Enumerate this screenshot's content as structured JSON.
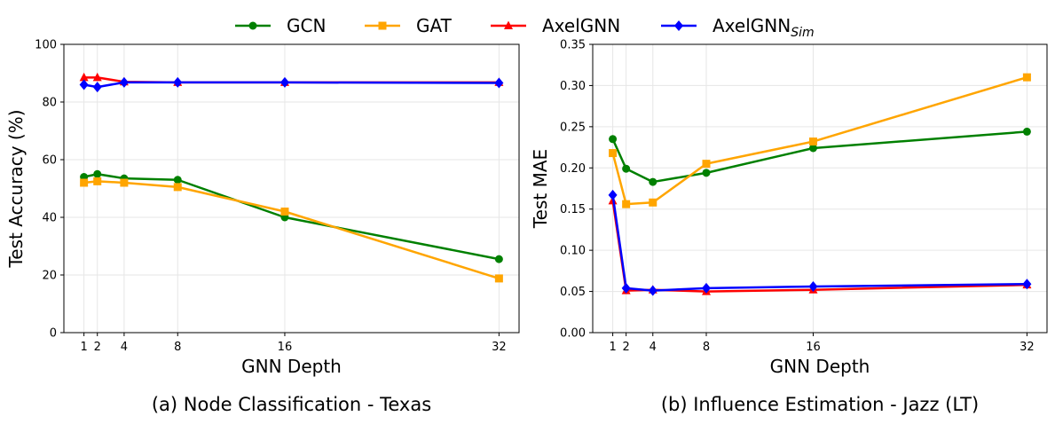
{
  "legend": [
    {
      "name": "GCN",
      "sub": "",
      "color": "#008000",
      "marker": "circle"
    },
    {
      "name": "GAT",
      "sub": "",
      "color": "#FFA500",
      "marker": "square"
    },
    {
      "name": "AxelGNN",
      "sub": "",
      "color": "#FF0000",
      "marker": "triangle"
    },
    {
      "name": "AxelGNN",
      "sub": "Sim",
      "color": "#0000FF",
      "marker": "diamond"
    }
  ],
  "chart_data": [
    {
      "type": "line",
      "title": "(a) Node Classification - Texas",
      "xlabel": "GNN Depth",
      "ylabel": "Test Accuracy (%)",
      "x": [
        1,
        2,
        4,
        8,
        16,
        32
      ],
      "xticks": [
        "1",
        "2",
        "4",
        "8",
        "16",
        "32"
      ],
      "xlim": [
        -0.5,
        33.5
      ],
      "ylim": [
        0,
        100
      ],
      "yticks": [
        "0",
        "20",
        "40",
        "60",
        "80",
        "100"
      ],
      "ytick_values": [
        0,
        20,
        40,
        60,
        80,
        100
      ],
      "grid": true,
      "series": [
        {
          "name": "GCN",
          "color": "#008000",
          "marker": "circle",
          "values": [
            54.0,
            55.0,
            53.5,
            53.0,
            40.0,
            25.5
          ]
        },
        {
          "name": "GAT",
          "color": "#FFA500",
          "marker": "square",
          "values": [
            52.0,
            52.5,
            52.0,
            50.5,
            42.0,
            18.8
          ]
        },
        {
          "name": "AxelGNN",
          "color": "#FF0000",
          "marker": "triangle",
          "values": [
            88.5,
            88.5,
            87.0,
            86.8,
            86.8,
            86.8
          ]
        },
        {
          "name": "AxelGNN_Sim",
          "color": "#0000FF",
          "marker": "diamond",
          "values": [
            86.0,
            85.2,
            86.8,
            86.8,
            86.8,
            86.6
          ]
        }
      ]
    },
    {
      "type": "line",
      "title": "(b) Influence Estimation - Jazz (LT)",
      "xlabel": "GNN Depth",
      "ylabel": "Test MAE",
      "x": [
        1,
        2,
        4,
        8,
        16,
        32
      ],
      "xticks": [
        "1",
        "2",
        "4",
        "8",
        "16",
        "32"
      ],
      "xlim": [
        -0.5,
        33.5
      ],
      "ylim": [
        0,
        0.35
      ],
      "yticks": [
        "0.00",
        "0.05",
        "0.10",
        "0.15",
        "0.20",
        "0.25",
        "0.30",
        "0.35"
      ],
      "ytick_values": [
        0,
        0.05,
        0.1,
        0.15,
        0.2,
        0.25,
        0.3,
        0.35
      ],
      "grid": true,
      "series": [
        {
          "name": "GCN",
          "color": "#008000",
          "marker": "circle",
          "values": [
            0.235,
            0.199,
            0.183,
            0.194,
            0.224,
            0.244
          ]
        },
        {
          "name": "GAT",
          "color": "#FFA500",
          "marker": "square",
          "values": [
            0.218,
            0.156,
            0.158,
            0.205,
            0.232,
            0.31
          ]
        },
        {
          "name": "AxelGNN",
          "color": "#FF0000",
          "marker": "triangle",
          "values": [
            0.16,
            0.051,
            0.052,
            0.05,
            0.052,
            0.058
          ]
        },
        {
          "name": "AxelGNN_Sim",
          "color": "#0000FF",
          "marker": "diamond",
          "values": [
            0.167,
            0.054,
            0.051,
            0.054,
            0.056,
            0.059
          ]
        }
      ]
    }
  ]
}
